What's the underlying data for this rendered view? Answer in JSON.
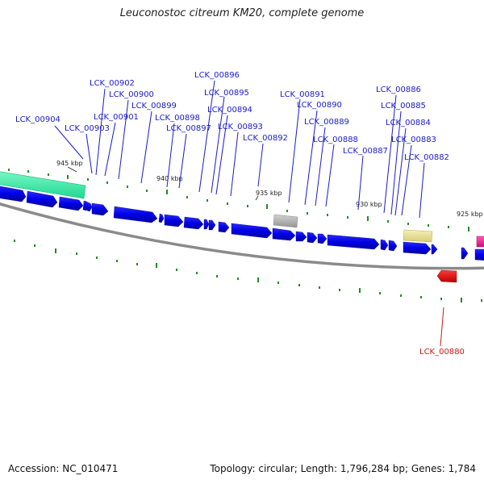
{
  "title": "Leuconostoc citreum KM20, complete genome",
  "footer": {
    "accession": "Accession: NC_010471",
    "summary": "Topology: circular; Length: 1,796,284 bp; Genes: 1,784"
  },
  "colors": {
    "forward_gene": "#0000ee",
    "reverse_gene": "#ee0000",
    "rrna": "#33eeaa",
    "grey_feature": "#b0b0b0",
    "yellow_feature": "#ece398",
    "magenta_feature": "#ee2a9a",
    "label_blue": "#1a1acc",
    "label_red": "#cc1a1a",
    "tick_green": "#1f8f1f",
    "backbone": "#777777"
  },
  "kbp_labels": [
    "945 kbp",
    "940 kbp",
    "935 kbp",
    "930 kbp",
    "925 kbp"
  ],
  "gene_labels": [
    "LCK_00904",
    "LCK_00903",
    "LCK_00902",
    "LCK_00901",
    "LCK_00900",
    "LCK_00899",
    "LCK_00898",
    "LCK_00897",
    "LCK_00896",
    "LCK_00895",
    "LCK_00894",
    "LCK_00893",
    "LCK_00892",
    "LCK_00891",
    "LCK_00890",
    "LCK_00889",
    "LCK_00888",
    "LCK_00887",
    "LCK_00886",
    "LCK_00885",
    "LCK_00884",
    "LCK_00883",
    "LCK_00882",
    "LCK_00880"
  ]
}
